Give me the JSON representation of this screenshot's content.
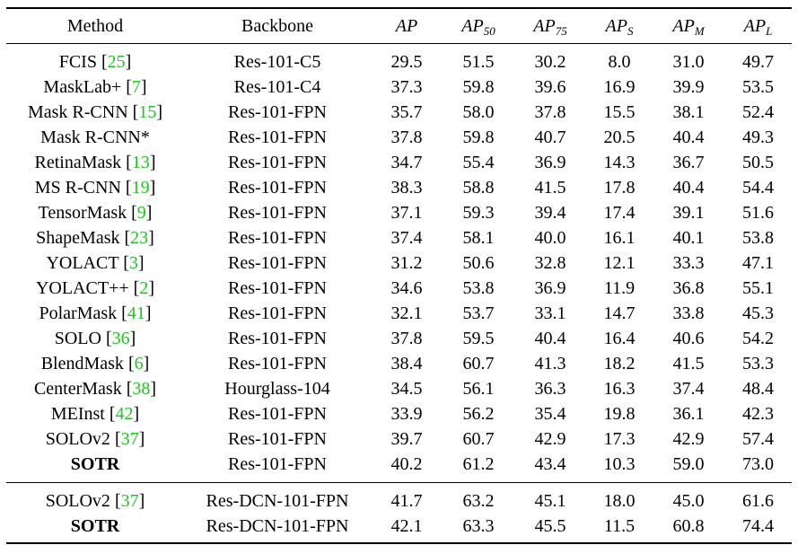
{
  "headers": {
    "method": "Method",
    "backbone": "Backbone",
    "metrics": [
      {
        "base": "AP",
        "sub": ""
      },
      {
        "base": "AP",
        "sub": "50"
      },
      {
        "base": "AP",
        "sub": "75"
      },
      {
        "base": "AP",
        "sub": "S"
      },
      {
        "base": "AP",
        "sub": "M"
      },
      {
        "base": "AP",
        "sub": "L"
      }
    ]
  },
  "rows": [
    {
      "method": "FCIS",
      "ref": "25",
      "backbone": "Res-101-C5",
      "values": [
        "29.5",
        "51.5",
        "30.2",
        "8.0",
        "31.0",
        "49.7"
      ]
    },
    {
      "method": "MaskLab+",
      "ref": "7",
      "backbone": "Res-101-C4",
      "values": [
        "37.3",
        "59.8",
        "39.6",
        "16.9",
        "39.9",
        "53.5"
      ]
    },
    {
      "method": "Mask R-CNN",
      "ref": "15",
      "backbone": "Res-101-FPN",
      "values": [
        "35.7",
        "58.0",
        "37.8",
        "15.5",
        "38.1",
        "52.4"
      ]
    },
    {
      "method": "Mask R-CNN*",
      "ref": "",
      "backbone": "Res-101-FPN",
      "values": [
        "37.8",
        "59.8",
        "40.7",
        "20.5",
        "40.4",
        "49.3"
      ]
    },
    {
      "method": "RetinaMask",
      "ref": "13",
      "backbone": "Res-101-FPN",
      "values": [
        "34.7",
        "55.4",
        "36.9",
        "14.3",
        "36.7",
        "50.5"
      ]
    },
    {
      "method": "MS R-CNN",
      "ref": "19",
      "backbone": "Res-101-FPN",
      "values": [
        "38.3",
        "58.8",
        "41.5",
        "17.8",
        "40.4",
        "54.4"
      ]
    },
    {
      "method": "TensorMask",
      "ref": "9",
      "backbone": "Res-101-FPN",
      "values": [
        "37.1",
        "59.3",
        "39.4",
        "17.4",
        "39.1",
        "51.6"
      ]
    },
    {
      "method": "ShapeMask",
      "ref": "23",
      "backbone": "Res-101-FPN",
      "values": [
        "37.4",
        "58.1",
        "40.0",
        "16.1",
        "40.1",
        "53.8"
      ]
    },
    {
      "method": "YOLACT",
      "ref": "3",
      "backbone": "Res-101-FPN",
      "values": [
        "31.2",
        "50.6",
        "32.8",
        "12.1",
        "33.3",
        "47.1"
      ]
    },
    {
      "method": "YOLACT++",
      "ref": "2",
      "backbone": "Res-101-FPN",
      "values": [
        "34.6",
        "53.8",
        "36.9",
        "11.9",
        "36.8",
        "55.1"
      ]
    },
    {
      "method": "PolarMask",
      "ref": "41",
      "backbone": "Res-101-FPN",
      "values": [
        "32.1",
        "53.7",
        "33.1",
        "14.7",
        "33.8",
        "45.3"
      ]
    },
    {
      "method": "SOLO",
      "ref": "36",
      "backbone": "Res-101-FPN",
      "values": [
        "37.8",
        "59.5",
        "40.4",
        "16.4",
        "40.6",
        "54.2"
      ]
    },
    {
      "method": "BlendMask",
      "ref": "6",
      "backbone": "Res-101-FPN",
      "values": [
        "38.4",
        "60.7",
        "41.3",
        "18.2",
        "41.5",
        "53.3"
      ]
    },
    {
      "method": "CenterMask",
      "ref": "38",
      "backbone": "Hourglass-104",
      "values": [
        "34.5",
        "56.1",
        "36.3",
        "16.3",
        "37.4",
        "48.4"
      ]
    },
    {
      "method": "MEInst",
      "ref": "42",
      "backbone": "Res-101-FPN",
      "values": [
        "33.9",
        "56.2",
        "35.4",
        "19.8",
        "36.1",
        "42.3"
      ]
    },
    {
      "method": "SOLOv2",
      "ref": "37",
      "backbone": "Res-101-FPN",
      "values": [
        "39.7",
        "60.7",
        "42.9",
        "17.3",
        "42.9",
        "57.4"
      ]
    },
    {
      "method": "SOTR",
      "ref": "",
      "backbone": "Res-101-FPN",
      "values": [
        "40.2",
        "61.2",
        "43.4",
        "10.3",
        "59.0",
        "73.0"
      ]
    }
  ],
  "extra_rows": [
    {
      "method": "SOLOv2",
      "ref": "37",
      "backbone": "Res-DCN-101-FPN",
      "values": [
        "41.7",
        "63.2",
        "45.1",
        "18.0",
        "45.0",
        "61.6"
      ]
    },
    {
      "method": "SOTR",
      "ref": "",
      "backbone": "Res-DCN-101-FPN",
      "values": [
        "42.1",
        "63.3",
        "45.5",
        "11.5",
        "60.8",
        "74.4"
      ]
    }
  ]
}
